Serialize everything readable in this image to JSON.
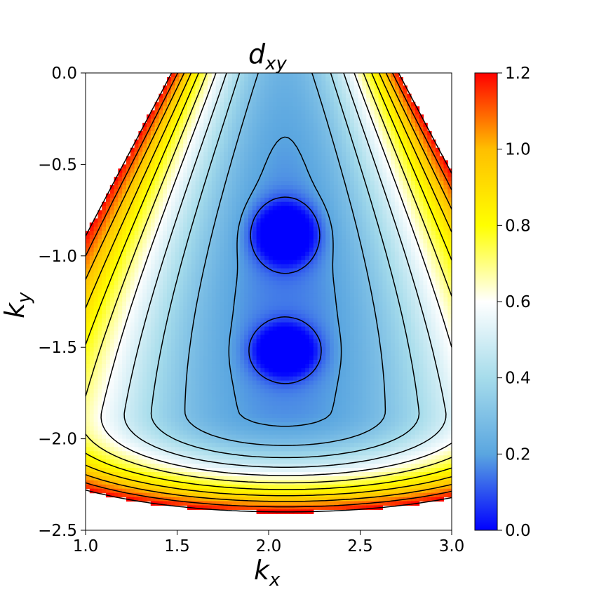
{
  "chart_data": {
    "type": "heatmap",
    "title": "d",
    "title_subscript": "xy",
    "xlabel": "k",
    "xlabel_subscript": "x",
    "ylabel": "k",
    "ylabel_subscript": "y",
    "xlim": [
      1.0,
      3.0
    ],
    "ylim": [
      -2.5,
      0.0
    ],
    "x_ticks": [
      1.0,
      1.5,
      2.0,
      2.5,
      3.0
    ],
    "x_tick_labels": [
      "1.0",
      "1.5",
      "2.0",
      "2.5",
      "3.0"
    ],
    "y_ticks": [
      0.0,
      -0.5,
      -1.0,
      -1.5,
      -2.0,
      -2.5
    ],
    "y_tick_labels": [
      "0.0",
      "−0.5",
      "−1.0",
      "−1.5",
      "−2.0",
      "−2.5"
    ],
    "colorbar": {
      "range": [
        0.0,
        1.2
      ],
      "ticks": [
        0.0,
        0.2,
        0.4,
        0.6,
        0.8,
        1.0,
        1.2
      ],
      "tick_labels": [
        "0.0",
        "0.2",
        "0.4",
        "0.6",
        "0.8",
        "1.0",
        "1.2"
      ],
      "colors": [
        {
          "value": 0.0,
          "color": "#0000ff"
        },
        {
          "value": 0.2,
          "color": "#5aa6e0"
        },
        {
          "value": 0.4,
          "color": "#a6dceb"
        },
        {
          "value": 0.6,
          "color": "#ffffff"
        },
        {
          "value": 0.8,
          "color": "#ffff00"
        },
        {
          "value": 1.0,
          "color": "#ffbf00"
        },
        {
          "value": 1.2,
          "color": "#ff0000"
        }
      ]
    },
    "minima": [
      {
        "kx": 2.09,
        "ky": -0.88,
        "value": 0.0
      },
      {
        "kx": 2.09,
        "ky": -1.52,
        "value": 0.0
      }
    ],
    "contour_levels": [
      0.1,
      0.2,
      0.3,
      0.4,
      0.5,
      0.6,
      0.7,
      0.8,
      0.9,
      1.0,
      1.1,
      1.2
    ],
    "values_above_range_masked": true,
    "contour_color": "#000000"
  }
}
